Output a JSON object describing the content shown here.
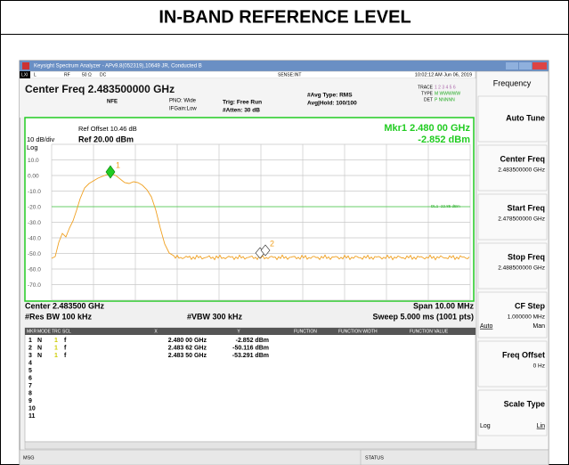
{
  "title": "IN-BAND REFERENCE LEVEL",
  "window_title": "Keysight Spectrum Analyzer - APv9.8(052319),10649 JR, Conducted B",
  "status_row": {
    "lxi": "LXI",
    "l": "L",
    "rf": "RF",
    "impedance": "50 Ω",
    "coupling": "DC",
    "sense": "SENSE:INT",
    "datetime": "10:02:12 AM Jun 06, 2019"
  },
  "header": {
    "center_freq": "Center Freq 2.483500000 GHz",
    "nfe": "NFE",
    "pno": "PNO: Wide",
    "ifgain": "IFGain:Low",
    "trig": "Trig: Free Run",
    "atten": "#Atten: 30 dB",
    "avg_type": "#Avg Type: RMS",
    "avg_hold": "Avg|Hold: 100/100",
    "trace_labels": [
      "TRACE",
      "TYPE",
      "DET"
    ],
    "trace_values": [
      "1 2 3 4 5 6",
      "M WWWWW",
      "P NNNNN"
    ]
  },
  "plot": {
    "ref_offset": "Ref Offset 10.46 dB",
    "scale": "10 dB/div",
    "ref_level": "Ref 20.00 dBm",
    "scale_type": "Log",
    "marker_readout_freq": "Mkr1 2.480 00 GHz",
    "marker_readout_level": "-2.852 dBm",
    "y_labels": [
      "10.0",
      "0.00",
      "-10.0",
      "-20.0",
      "-30.0",
      "-40.0",
      "-50.0",
      "-60.0",
      "-70.0"
    ],
    "display_line": "DL1 -22.85 dBm",
    "marker_labels": [
      "1",
      "2"
    ],
    "center": "Center 2.483500 GHz",
    "span": "Span 10.00 MHz",
    "res_bw": "#Res BW 100 kHz",
    "vbw": "#VBW 300 kHz",
    "sweep": "Sweep  5.000 ms (1001 pts)"
  },
  "marker_table": {
    "columns": [
      "MKR",
      "MODE",
      "TRC",
      "SCL",
      "X",
      "Y",
      "FUNCTION",
      "FUNCTION WIDTH",
      "FUNCTION VALUE"
    ],
    "rows": [
      [
        "1",
        "N",
        "1",
        "f",
        "2.480 00 GHz",
        "-2.852 dBm"
      ],
      [
        "2",
        "N",
        "1",
        "f",
        "2.483 62 GHz",
        "-50.116 dBm"
      ],
      [
        "3",
        "N",
        "1",
        "f",
        "2.483 50 GHz",
        "-53.291 dBm"
      ]
    ],
    "empty_rows": [
      "4",
      "5",
      "6",
      "7",
      "8",
      "9",
      "10",
      "11"
    ]
  },
  "softkeys": {
    "menu": "Frequency",
    "keys": [
      {
        "label": "Auto Tune"
      },
      {
        "label": "Center Freq",
        "value": "2.483500000 GHz"
      },
      {
        "label": "Start Freq",
        "value": "2.478500000 GHz"
      },
      {
        "label": "Stop Freq",
        "value": "2.488500000 GHz"
      },
      {
        "label": "CF Step",
        "value": "1.000000 MHz",
        "options": [
          "Auto",
          "Man"
        ]
      },
      {
        "label": "Freq Offset",
        "value": "0 Hz"
      },
      {
        "label": "Scale Type",
        "options": [
          "Log",
          "Lin"
        ]
      }
    ]
  },
  "footer": {
    "msg": "MSG",
    "status": "STATUS"
  }
}
